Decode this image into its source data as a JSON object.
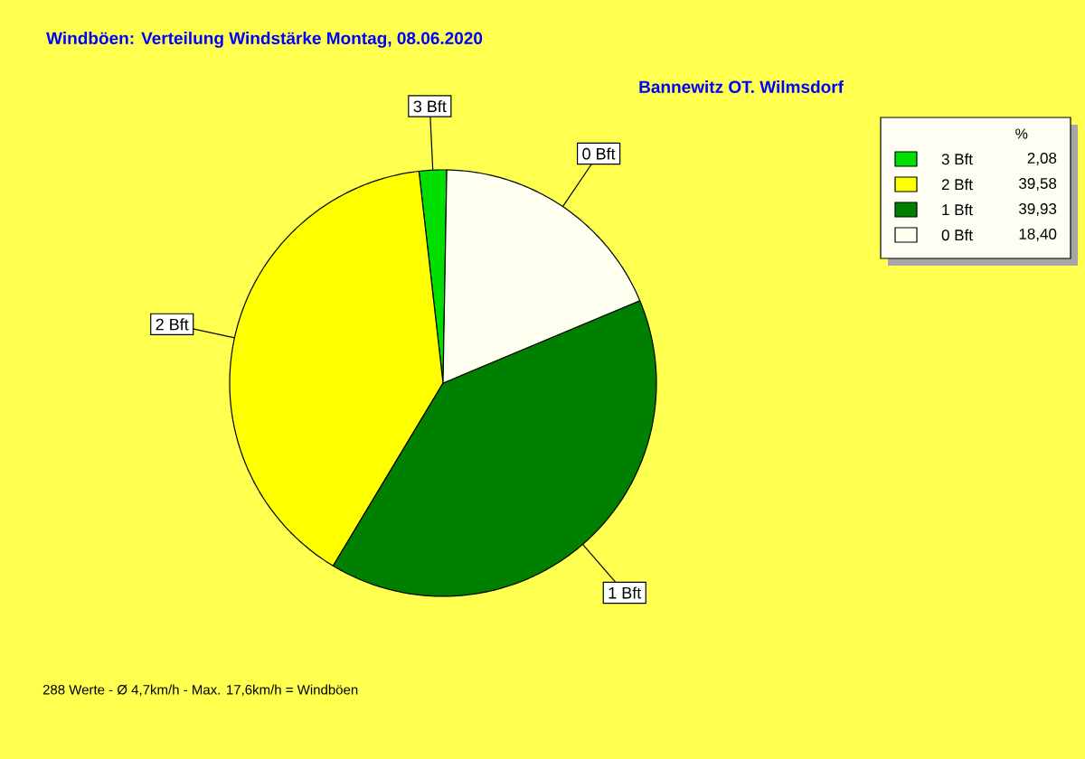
{
  "chart_data": {
    "type": "pie",
    "title": "Windböen: Verteilung Windstärke  Montag, 08.06.2020",
    "subtitle": "Bannewitz OT. Wilmsdorf",
    "categories": [
      "3 Bft",
      "2 Bft",
      "1 Bft",
      "0 Bft"
    ],
    "values": [
      2.08,
      39.58,
      39.93,
      18.4
    ],
    "value_labels": [
      "2,08",
      "39,58",
      "39,93",
      "18,40"
    ],
    "colors": [
      "#00e000",
      "#ffff00",
      "#008000",
      "#fffff0"
    ],
    "legend": "top right",
    "legend_title": "%",
    "annotations": [
      "288 Werte   -   Ø 4,7km/h  -  Max. 17,6km/h = Windböen"
    ]
  }
}
